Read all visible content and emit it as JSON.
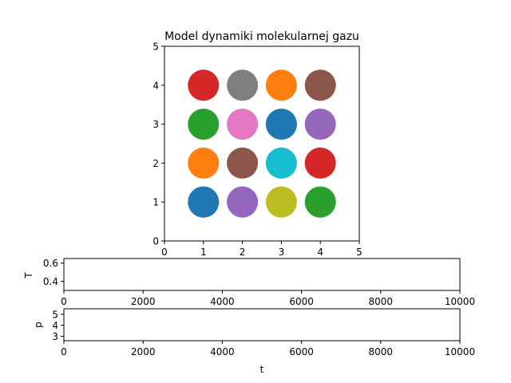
{
  "chart_data": [
    {
      "type": "scatter",
      "title": "Model dynamiki molekularnej gazu",
      "xlabel": "",
      "ylabel": "",
      "xlim": [
        0,
        5
      ],
      "ylim": [
        0,
        5
      ],
      "xticks": [
        "0",
        "1",
        "2",
        "3",
        "4",
        "5"
      ],
      "yticks": [
        "0",
        "1",
        "2",
        "3",
        "4",
        "5"
      ],
      "grid": false,
      "points": [
        {
          "x": 1,
          "y": 1,
          "color": "#1f77b4"
        },
        {
          "x": 2,
          "y": 1,
          "color": "#9467bd"
        },
        {
          "x": 3,
          "y": 1,
          "color": "#bcbd22"
        },
        {
          "x": 4,
          "y": 1,
          "color": "#2ca02c"
        },
        {
          "x": 1,
          "y": 2,
          "color": "#ff7f0e"
        },
        {
          "x": 2,
          "y": 2,
          "color": "#8c564b"
        },
        {
          "x": 3,
          "y": 2,
          "color": "#17becf"
        },
        {
          "x": 4,
          "y": 2,
          "color": "#d62728"
        },
        {
          "x": 1,
          "y": 3,
          "color": "#2ca02c"
        },
        {
          "x": 2,
          "y": 3,
          "color": "#e377c2"
        },
        {
          "x": 3,
          "y": 3,
          "color": "#1f77b4"
        },
        {
          "x": 4,
          "y": 3,
          "color": "#9467bd"
        },
        {
          "x": 1,
          "y": 4,
          "color": "#d62728"
        },
        {
          "x": 2,
          "y": 4,
          "color": "#7f7f7f"
        },
        {
          "x": 3,
          "y": 4,
          "color": "#ff7f0e"
        },
        {
          "x": 4,
          "y": 4,
          "color": "#8c564b"
        }
      ]
    },
    {
      "type": "line",
      "title": "",
      "xlabel": "",
      "ylabel": "T",
      "xlim": [
        0,
        10000
      ],
      "ylim": [
        0.3,
        0.65
      ],
      "xticks": [
        "0",
        "2000",
        "4000",
        "6000",
        "8000",
        "10000"
      ],
      "yticks": [
        "0.4",
        "0.6"
      ],
      "grid": false,
      "series": []
    },
    {
      "type": "line",
      "title": "",
      "xlabel": "t",
      "ylabel": "p",
      "xlim": [
        0,
        10000
      ],
      "ylim": [
        2.6,
        5.5
      ],
      "xticks": [
        "0",
        "2000",
        "4000",
        "6000",
        "8000",
        "10000"
      ],
      "yticks": [
        "3",
        "4",
        "5"
      ],
      "grid": false,
      "series": []
    }
  ]
}
